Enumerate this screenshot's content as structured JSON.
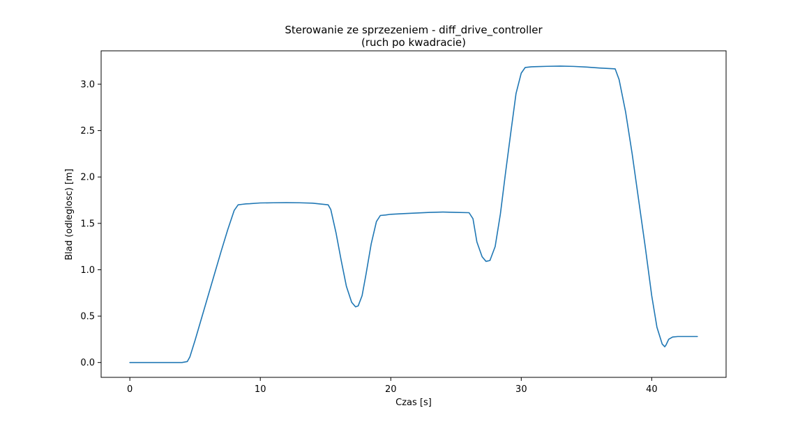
{
  "chart_data": {
    "type": "line",
    "title": "Sterowanie ze sprzezeniem - diff_drive_controller",
    "subtitle": "(ruch po kwadracie)",
    "xlabel": "Czas [s]",
    "ylabel": "Blad (odleglosc) [m]",
    "xlim": [
      -2.2,
      45.7
    ],
    "ylim": [
      -0.16,
      3.36
    ],
    "xticks": [
      0,
      10,
      20,
      30,
      40
    ],
    "xtick_labels": [
      "0",
      "10",
      "20",
      "30",
      "40"
    ],
    "yticks": [
      0.0,
      0.5,
      1.0,
      1.5,
      2.0,
      2.5,
      3.0
    ],
    "ytick_labels": [
      "0.0",
      "0.5",
      "1.0",
      "1.5",
      "2.0",
      "2.5",
      "3.0"
    ],
    "grid": false,
    "color": "#1f77b4",
    "series": [
      {
        "x": [
          0,
          1,
          2,
          3,
          4,
          4.4,
          4.6,
          5,
          5.5,
          6,
          6.5,
          7,
          7.5,
          8,
          8.3,
          8.6,
          8.9,
          9.2,
          10,
          11,
          12,
          13,
          14,
          15.2,
          15.4,
          15.8,
          16.2,
          16.6,
          17,
          17.3,
          17.5,
          17.8,
          18.1,
          18.5,
          18.9,
          19.2,
          19.6,
          20,
          21,
          22,
          23,
          24,
          25,
          26,
          26.3,
          26.6,
          27,
          27.3,
          27.6,
          28,
          28.4,
          28.8,
          29.2,
          29.6,
          30,
          30.3,
          30.6,
          30.8,
          31.2,
          32,
          33,
          34,
          35,
          36,
          37,
          37.2,
          37.5,
          38,
          38.5,
          39,
          39.5,
          40,
          40.4,
          40.8,
          41,
          41.1,
          41.3,
          41.6,
          42,
          43,
          43.5
        ],
        "y": [
          0,
          0,
          0,
          0,
          0,
          0.01,
          0.06,
          0.24,
          0.48,
          0.72,
          0.96,
          1.2,
          1.43,
          1.64,
          1.7,
          1.705,
          1.71,
          1.712,
          1.72,
          1.722,
          1.723,
          1.722,
          1.718,
          1.7,
          1.65,
          1.4,
          1.1,
          0.82,
          0.65,
          0.6,
          0.61,
          0.72,
          0.95,
          1.28,
          1.52,
          1.585,
          1.59,
          1.598,
          1.605,
          1.612,
          1.618,
          1.622,
          1.618,
          1.615,
          1.55,
          1.3,
          1.14,
          1.09,
          1.1,
          1.25,
          1.6,
          2.05,
          2.48,
          2.9,
          3.12,
          3.18,
          3.185,
          3.188,
          3.19,
          3.193,
          3.195,
          3.192,
          3.185,
          3.175,
          3.167,
          3.165,
          3.05,
          2.7,
          2.25,
          1.75,
          1.25,
          0.72,
          0.38,
          0.2,
          0.17,
          0.19,
          0.25,
          0.275,
          0.28,
          0.28,
          0.28
        ]
      }
    ]
  }
}
